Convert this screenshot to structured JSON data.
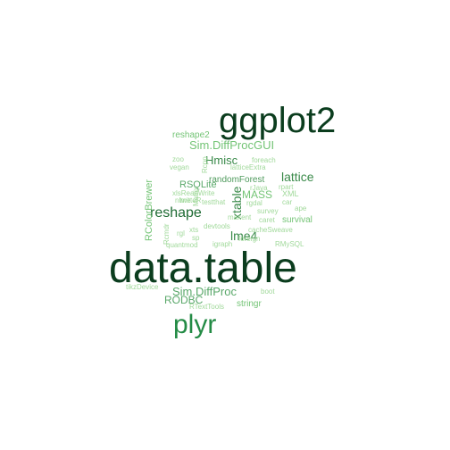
{
  "words": [
    {
      "text": "data.table",
      "color": "#0b3d1e"
    },
    {
      "text": "ggplot2",
      "color": "#0b3d1e"
    },
    {
      "text": "plyr",
      "color": "#238b45"
    },
    {
      "text": "reshape",
      "color": "#1f6b34"
    },
    {
      "text": "Sim.DiffProcGUI",
      "color": "#74c476"
    },
    {
      "text": "Hmisc",
      "color": "#3a8a4a"
    },
    {
      "text": "lattice",
      "color": "#3a8a4a"
    },
    {
      "text": "Sim.DiffProc",
      "color": "#5aa86a"
    },
    {
      "text": "lme4",
      "color": "#3a8a4a"
    },
    {
      "text": "xtable",
      "color": "#3a8a4a"
    },
    {
      "text": "RODBC",
      "color": "#5aa86a"
    },
    {
      "text": "reshape2",
      "color": "#74c476"
    },
    {
      "text": "randomForest",
      "color": "#4e9a5c"
    },
    {
      "text": "RColorBrewer",
      "color": "#74c476"
    },
    {
      "text": "RSQLite",
      "color": "#5aa86a"
    },
    {
      "text": "MASS",
      "color": "#74c476"
    },
    {
      "text": "survival",
      "color": "#74c476"
    },
    {
      "text": "stringr",
      "color": "#74c476"
    },
    {
      "text": "foreach",
      "color": "#a1d99b"
    },
    {
      "text": "zoo",
      "color": "#a1d99b"
    },
    {
      "text": "vegan",
      "color": "#a1d99b"
    },
    {
      "text": "latticeExtra",
      "color": "#a1d99b"
    },
    {
      "text": "Matrix",
      "color": "#a1d99b"
    },
    {
      "text": "xlsReadWrite",
      "color": "#a1d99b"
    },
    {
      "text": "nlme",
      "color": "#a1d99b"
    },
    {
      "text": "testthat",
      "color": "#a1d99b"
    },
    {
      "text": "rJava",
      "color": "#a1d99b"
    },
    {
      "text": "rpart",
      "color": "#a1d99b"
    },
    {
      "text": "XML",
      "color": "#a1d99b"
    },
    {
      "text": "car",
      "color": "#a1d99b"
    },
    {
      "text": "rgdal",
      "color": "#a1d99b"
    },
    {
      "text": "twitteR",
      "color": "#a1d99b"
    },
    {
      "text": "devtools",
      "color": "#a1d99b"
    },
    {
      "text": "survey",
      "color": "#a1d99b"
    },
    {
      "text": "ape",
      "color": "#a1d99b"
    },
    {
      "text": "Rcmdr",
      "color": "#a1d99b"
    },
    {
      "text": "rgl",
      "color": "#a1d99b"
    },
    {
      "text": "xts",
      "color": "#a1d99b"
    },
    {
      "text": "sp",
      "color": "#a1d99b"
    },
    {
      "text": "maxent",
      "color": "#a1d99b"
    },
    {
      "text": "caret",
      "color": "#a1d99b"
    },
    {
      "text": "cacheSweave",
      "color": "#a1d99b"
    },
    {
      "text": "foreign",
      "color": "#a1d99b"
    },
    {
      "text": "igraph",
      "color": "#a1d99b"
    },
    {
      "text": "quantmod",
      "color": "#a1d99b"
    },
    {
      "text": "RMySQL",
      "color": "#a1d99b"
    },
    {
      "text": "tikzDevice",
      "color": "#a1d99b"
    },
    {
      "text": "boot",
      "color": "#a1d99b"
    },
    {
      "text": "RTextTools",
      "color": "#a1d99b"
    },
    {
      "text": "Rcpp",
      "color": "#a1d99b"
    }
  ]
}
